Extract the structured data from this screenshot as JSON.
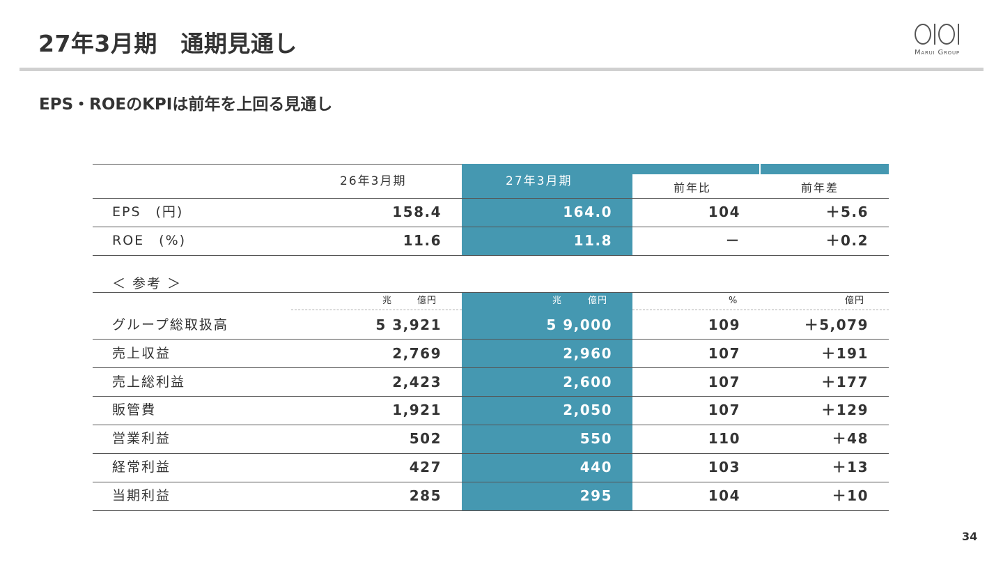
{
  "header": {
    "title": "27年3月期　通期見通し",
    "subtitle": "EPS・ROEのKPIは前年を上回る見通し"
  },
  "logo": {
    "text": "Marui Group"
  },
  "colors": {
    "highlight": "#4598b1",
    "rule": "#d0d0d0",
    "text": "#333333"
  },
  "table": {
    "headers": {
      "prev": "26年3月期",
      "forecast": "27年3月期",
      "yoy": "前年比",
      "diff": "前年差"
    },
    "kpi_rows": [
      {
        "label": "EPS　(円)",
        "prev": "158.4",
        "forecast": "164.0",
        "yoy": "104",
        "diff": "＋5.6"
      },
      {
        "label": "ROE　(%)",
        "prev": "11.6",
        "forecast": "11.8",
        "yoy": "－",
        "diff": "＋0.2"
      }
    ],
    "reference_label": "＜ 参考 ＞",
    "units": {
      "prev_cho": "兆",
      "prev_oku": "億円",
      "fc_cho": "兆",
      "fc_oku": "億円",
      "yoy": "%",
      "diff": "億円"
    },
    "ref_rows": [
      {
        "label": "グループ総取扱高",
        "prev": "5 3,921",
        "forecast": "5 9,000",
        "yoy": "109",
        "diff": "＋5,079"
      },
      {
        "label": "売上収益",
        "prev": "2,769",
        "forecast": "2,960",
        "yoy": "107",
        "diff": "＋191"
      },
      {
        "label": "売上総利益",
        "prev": "2,423",
        "forecast": "2,600",
        "yoy": "107",
        "diff": "＋177"
      },
      {
        "label": "販管費",
        "prev": "1,921",
        "forecast": "2,050",
        "yoy": "107",
        "diff": "＋129"
      },
      {
        "label": "営業利益",
        "prev": "502",
        "forecast": "550",
        "yoy": "110",
        "diff": "＋48"
      },
      {
        "label": "経常利益",
        "prev": "427",
        "forecast": "440",
        "yoy": "103",
        "diff": "＋13"
      },
      {
        "label": "当期利益",
        "prev": "285",
        "forecast": "295",
        "yoy": "104",
        "diff": "＋10"
      }
    ]
  },
  "page_number": "34"
}
